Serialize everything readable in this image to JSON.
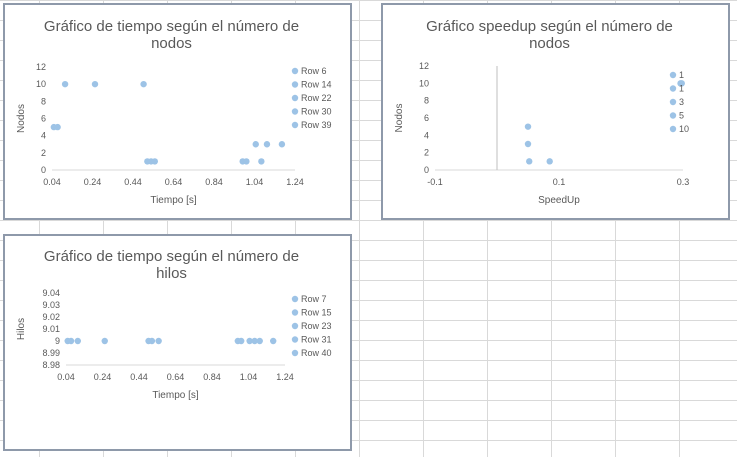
{
  "chart_data": [
    {
      "type": "scatter",
      "title_lines": [
        "Gráfico de tiempo según el número de",
        "nodos"
      ],
      "xlabel": "Tiempo [s]",
      "ylabel": "Nodos",
      "xlim": [
        0.04,
        1.34
      ],
      "ylim": [
        0,
        12
      ],
      "x_ticks": [
        "0.04",
        "0.24",
        "0.44",
        "0.64",
        "0.84",
        "1.04",
        "1.24"
      ],
      "y_ticks": [
        "0",
        "2",
        "4",
        "6",
        "8",
        "10",
        "12"
      ],
      "legend": [
        "Row 6",
        "Row 14",
        "Row 22",
        "Row 30",
        "Row 39"
      ],
      "legend_position": "right",
      "marker_color": "#9dc3e6",
      "points": [
        {
          "x": 0.05,
          "y": 5
        },
        {
          "x": 0.07,
          "y": 5
        },
        {
          "x": 0.11,
          "y": 10
        },
        {
          "x": 0.27,
          "y": 10
        },
        {
          "x": 0.53,
          "y": 10
        },
        {
          "x": 0.55,
          "y": 1
        },
        {
          "x": 0.57,
          "y": 1
        },
        {
          "x": 0.59,
          "y": 1
        },
        {
          "x": 1.06,
          "y": 1
        },
        {
          "x": 1.08,
          "y": 1
        },
        {
          "x": 1.13,
          "y": 3
        },
        {
          "x": 1.16,
          "y": 1
        },
        {
          "x": 1.19,
          "y": 3
        },
        {
          "x": 1.27,
          "y": 3
        }
      ]
    },
    {
      "type": "scatter",
      "title_lines": [
        "Gráfico speedup según el número de",
        "nodos"
      ],
      "xlabel": "SpeedUp",
      "ylabel": "Nodos",
      "xlim": [
        -0.1,
        0.3
      ],
      "ylim": [
        0,
        12
      ],
      "x_ticks": [
        "-0.1",
        "0.1",
        "0.3"
      ],
      "y_ticks": [
        "0",
        "2",
        "4",
        "6",
        "8",
        "10",
        "12"
      ],
      "legend": [
        "1",
        "1",
        "3",
        "5",
        "10"
      ],
      "legend_position": "right",
      "marker_color": "#9dc3e6",
      "points": [
        {
          "x": 0.05,
          "y": 5
        },
        {
          "x": 0.05,
          "y": 3
        },
        {
          "x": 0.052,
          "y": 1
        },
        {
          "x": 0.085,
          "y": 1
        },
        {
          "x": 0.296,
          "y": 10
        },
        {
          "x": 0.298,
          "y": 10
        }
      ]
    },
    {
      "type": "scatter",
      "title_lines": [
        "Gráfico de tiempo según el número de",
        "hilos"
      ],
      "xlabel": "Tiempo [s]",
      "ylabel": "Hilos",
      "xlim": [
        0.04,
        1.34
      ],
      "ylim": [
        8.98,
        9.04
      ],
      "x_ticks": [
        "0.04",
        "0.24",
        "0.44",
        "0.64",
        "0.84",
        "1.04",
        "1.24"
      ],
      "y_ticks": [
        "8.98",
        "8.99",
        "9",
        "9.01",
        "9.02",
        "9.03",
        "9.04"
      ],
      "legend": [
        "Row 7",
        "Row 15",
        "Row 23",
        "Row 31",
        "Row 40"
      ],
      "legend_position": "right",
      "marker_color": "#9dc3e6",
      "points": [
        {
          "x": 0.05,
          "y": 9
        },
        {
          "x": 0.07,
          "y": 9
        },
        {
          "x": 0.11,
          "y": 9
        },
        {
          "x": 0.27,
          "y": 9
        },
        {
          "x": 0.53,
          "y": 9
        },
        {
          "x": 0.55,
          "y": 9
        },
        {
          "x": 0.59,
          "y": 9
        },
        {
          "x": 1.06,
          "y": 9
        },
        {
          "x": 1.08,
          "y": 9
        },
        {
          "x": 1.13,
          "y": 9
        },
        {
          "x": 1.16,
          "y": 9
        },
        {
          "x": 1.19,
          "y": 9
        },
        {
          "x": 1.27,
          "y": 9
        }
      ]
    }
  ]
}
